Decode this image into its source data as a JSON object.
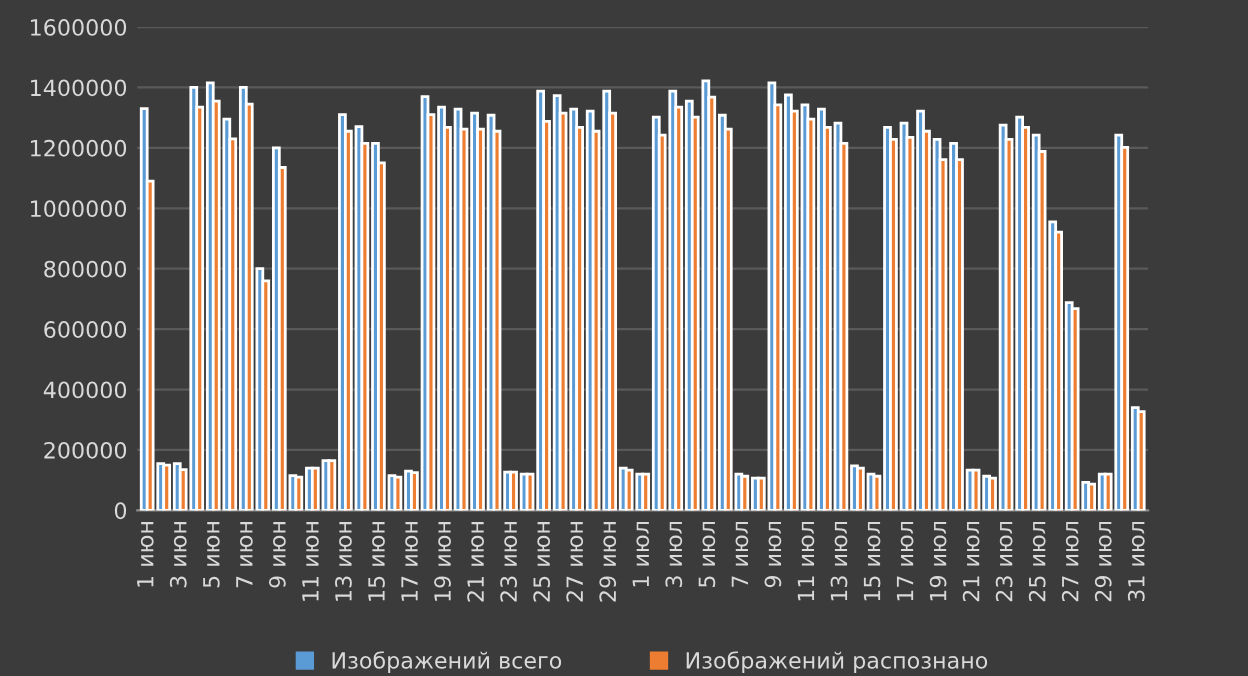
{
  "chart_data": {
    "type": "bar",
    "categories": [
      "1 июн",
      null,
      "3 июн",
      null,
      "5 июн",
      null,
      "7 июн",
      null,
      "9 июн",
      null,
      "11 июн",
      null,
      "13 июн",
      null,
      "15 июн",
      null,
      "17 июн",
      null,
      "19 июн",
      null,
      "21 июн",
      null,
      "23 июн",
      null,
      "25 июн",
      null,
      "27 июн",
      null,
      "29 июн",
      null,
      "1 июл",
      null,
      "3 июл",
      null,
      "5 июл",
      null,
      "7 июл",
      null,
      "9 июл",
      null,
      "11 июл",
      null,
      "13 июл",
      null,
      "15 июл",
      null,
      "17 июл",
      null,
      "19 июл",
      null,
      "21 июл",
      null,
      "23 июл",
      null,
      "25 июл",
      null,
      "27 июл",
      null,
      "29 июл",
      null,
      "31 июл"
    ],
    "series": [
      {
        "name": "Изображений всего",
        "color": "#5b9bd5",
        "values": [
          1330000,
          155000,
          155000,
          1400000,
          1415000,
          1295000,
          1400000,
          800000,
          1200000,
          115000,
          140000,
          165000,
          1310000,
          1270000,
          1215000,
          115000,
          130000,
          1370000,
          1335000,
          1328000,
          1315000,
          1308000,
          127000,
          120000,
          1388000,
          1373000,
          1328000,
          1322000,
          1388000,
          140000,
          120000,
          1302000,
          1388000,
          1355000,
          1422000,
          1308000,
          120000,
          107000,
          1415000,
          1375000,
          1342000,
          1328000,
          1282000,
          147000,
          120000,
          1268000,
          1282000,
          1322000,
          1228000,
          1215000,
          133000,
          113000,
          1275000,
          1302000,
          1242000,
          955000,
          688000,
          93000,
          120000,
          1242000,
          340000
        ]
      },
      {
        "name": "Изображений распознано",
        "color": "#ed7d31",
        "values": [
          1090000,
          150000,
          135000,
          1335000,
          1355000,
          1230000,
          1345000,
          760000,
          1135000,
          110000,
          140000,
          165000,
          1255000,
          1215000,
          1150000,
          110000,
          125000,
          1310000,
          1268000,
          1262000,
          1262000,
          1255000,
          127000,
          120000,
          1288000,
          1315000,
          1268000,
          1255000,
          1315000,
          133000,
          120000,
          1242000,
          1335000,
          1302000,
          1368000,
          1262000,
          113000,
          107000,
          1342000,
          1322000,
          1295000,
          1268000,
          1215000,
          140000,
          113000,
          1228000,
          1235000,
          1255000,
          1161000,
          1161000,
          133000,
          107000,
          1228000,
          1268000,
          1188000,
          921000,
          668000,
          87000,
          120000,
          1202000,
          327000
        ]
      }
    ],
    "ylim": [
      0,
      1600000
    ],
    "yticks": [
      0,
      200000,
      400000,
      600000,
      800000,
      1000000,
      1200000,
      1400000,
      1600000
    ],
    "grid": "y",
    "legend": "bottom"
  }
}
